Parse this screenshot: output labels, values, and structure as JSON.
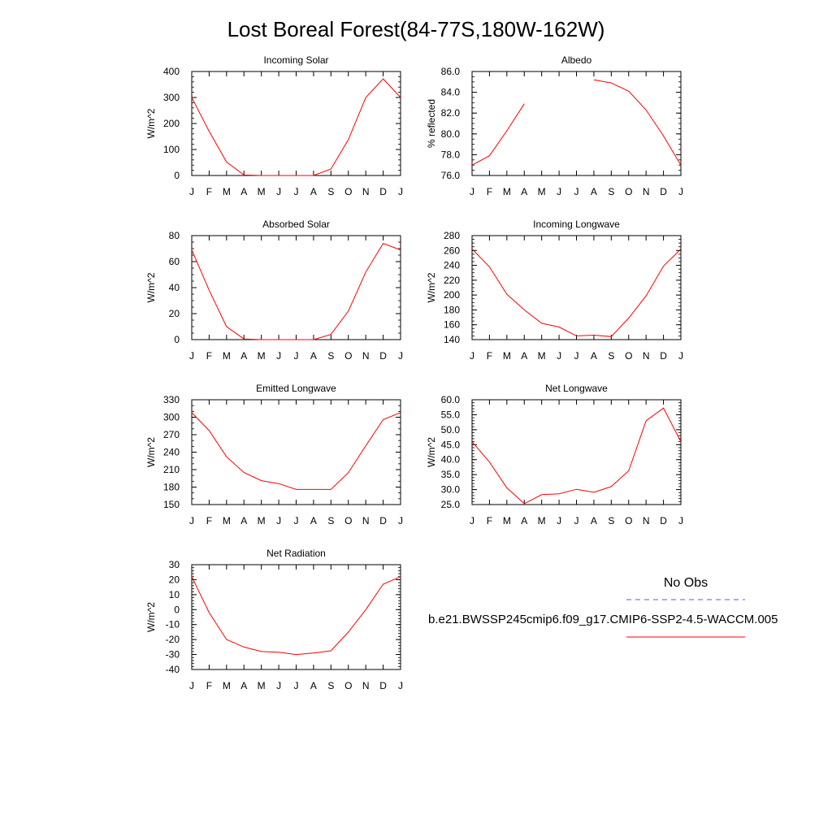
{
  "title": "Lost Boreal Forest(84-77S,180W-162W)",
  "months": [
    "J",
    "F",
    "M",
    "A",
    "M",
    "J",
    "J",
    "A",
    "S",
    "O",
    "N",
    "D",
    "J"
  ],
  "colors": {
    "model": "#ff0000",
    "obs": "#5555ff",
    "axis": "#000000"
  },
  "legend": {
    "obs_label": "No Obs",
    "model_label": "b.e21.BWSSP245cmip6.f09_g17.CMIP6-SSP2-4.5-WACCM.005"
  },
  "chart_data": [
    {
      "type": "line",
      "title": "Incoming Solar",
      "ylabel": "W/m^2",
      "ylim": [
        0,
        400
      ],
      "yticks": [
        0,
        100,
        200,
        300,
        400
      ],
      "tick_labels": [
        "0",
        "100",
        "200",
        "300",
        "400"
      ],
      "minor_step": 20,
      "x": [
        "J",
        "F",
        "M",
        "A",
        "M",
        "J",
        "J",
        "A",
        "S",
        "O",
        "N",
        "D",
        "J"
      ],
      "series": [
        {
          "values": [
            300,
            170,
            52,
            2,
            0,
            0,
            0,
            0,
            25,
            138,
            300,
            372,
            300
          ]
        }
      ]
    },
    {
      "type": "line",
      "title": "Albedo",
      "ylabel": "% reflected",
      "ylim": [
        76,
        86
      ],
      "yticks": [
        76,
        78,
        80,
        82,
        84,
        86
      ],
      "tick_labels": [
        "76.0",
        "78.0",
        "80.0",
        "82.0",
        "84.0",
        "86.0"
      ],
      "minor_step": 0.5,
      "x": [
        "J",
        "F",
        "M",
        "A",
        "M",
        "J",
        "J",
        "A",
        "S",
        "O",
        "N",
        "D",
        "J"
      ],
      "series": [
        {
          "values": [
            77.0,
            77.9,
            80.3,
            82.9,
            null,
            null,
            null,
            85.2,
            84.9,
            84.1,
            82.3,
            79.8,
            77.0
          ]
        }
      ]
    },
    {
      "type": "line",
      "title": "Absorbed Solar",
      "ylabel": "W/m^2",
      "ylim": [
        0,
        80
      ],
      "yticks": [
        0,
        20,
        40,
        60,
        80
      ],
      "tick_labels": [
        "0",
        "20",
        "40",
        "60",
        "80"
      ],
      "minor_step": 5,
      "x": [
        "J",
        "F",
        "M",
        "A",
        "M",
        "J",
        "J",
        "A",
        "S",
        "O",
        "N",
        "D",
        "J"
      ],
      "series": [
        {
          "values": [
            69,
            38,
            10,
            0.5,
            0,
            0,
            0,
            0,
            4,
            22,
            52,
            74,
            69
          ]
        }
      ]
    },
    {
      "type": "line",
      "title": "Incoming Longwave",
      "ylabel": "W/m^2",
      "ylim": [
        140,
        280
      ],
      "yticks": [
        140,
        160,
        180,
        200,
        220,
        240,
        260,
        280
      ],
      "tick_labels": [
        "140",
        "160",
        "180",
        "200",
        "220",
        "240",
        "260",
        "280"
      ],
      "minor_step": 5,
      "x": [
        "J",
        "F",
        "M",
        "A",
        "M",
        "J",
        "J",
        "A",
        "S",
        "O",
        "N",
        "D",
        "J"
      ],
      "series": [
        {
          "values": [
            262,
            238,
            201,
            180,
            162,
            157,
            145,
            146,
            144,
            169,
            199,
            239,
            262
          ]
        }
      ]
    },
    {
      "type": "line",
      "title": "Emitted Longwave",
      "ylabel": "W/m^2",
      "ylim": [
        150,
        330
      ],
      "yticks": [
        150,
        180,
        210,
        240,
        270,
        300,
        330
      ],
      "tick_labels": [
        "150",
        "180",
        "210",
        "240",
        "270",
        "300",
        "330"
      ],
      "minor_step": 10,
      "x": [
        "J",
        "F",
        "M",
        "A",
        "M",
        "J",
        "J",
        "A",
        "S",
        "O",
        "N",
        "D",
        "J"
      ],
      "series": [
        {
          "values": [
            308,
            277,
            232,
            205,
            191,
            186,
            176,
            176,
            176,
            205,
            251,
            296,
            308
          ]
        }
      ]
    },
    {
      "type": "line",
      "title": "Net Longwave",
      "ylabel": "W/m^2",
      "ylim": [
        25,
        60
      ],
      "yticks": [
        25,
        30,
        35,
        40,
        45,
        50,
        55,
        60
      ],
      "tick_labels": [
        "25.0",
        "30.0",
        "35.0",
        "40.0",
        "45.0",
        "50.0",
        "55.0",
        "60.0"
      ],
      "minor_step": 1,
      "x": [
        "J",
        "F",
        "M",
        "A",
        "M",
        "J",
        "J",
        "A",
        "S",
        "O",
        "N",
        "D",
        "J"
      ],
      "series": [
        {
          "values": [
            46,
            39.2,
            30.6,
            25.3,
            28.3,
            28.6,
            30.1,
            29.1,
            31.0,
            36.3,
            53.0,
            57.2,
            46
          ]
        }
      ]
    },
    {
      "type": "line",
      "title": "Net Radiation",
      "ylabel": "W/m^2",
      "ylim": [
        -40,
        30
      ],
      "yticks": [
        -40,
        -30,
        -20,
        -10,
        0,
        10,
        20,
        30
      ],
      "tick_labels": [
        "-40",
        "-30",
        "-20",
        "-10",
        "0",
        "10",
        "20",
        "30"
      ],
      "minor_step": 2,
      "x": [
        "J",
        "F",
        "M",
        "A",
        "M",
        "J",
        "J",
        "A",
        "S",
        "O",
        "N",
        "D",
        "J"
      ],
      "series": [
        {
          "values": [
            22,
            -2,
            -20,
            -25,
            -28,
            -28.5,
            -30,
            -29,
            -27.5,
            -15,
            0,
            17,
            22
          ]
        }
      ]
    }
  ]
}
